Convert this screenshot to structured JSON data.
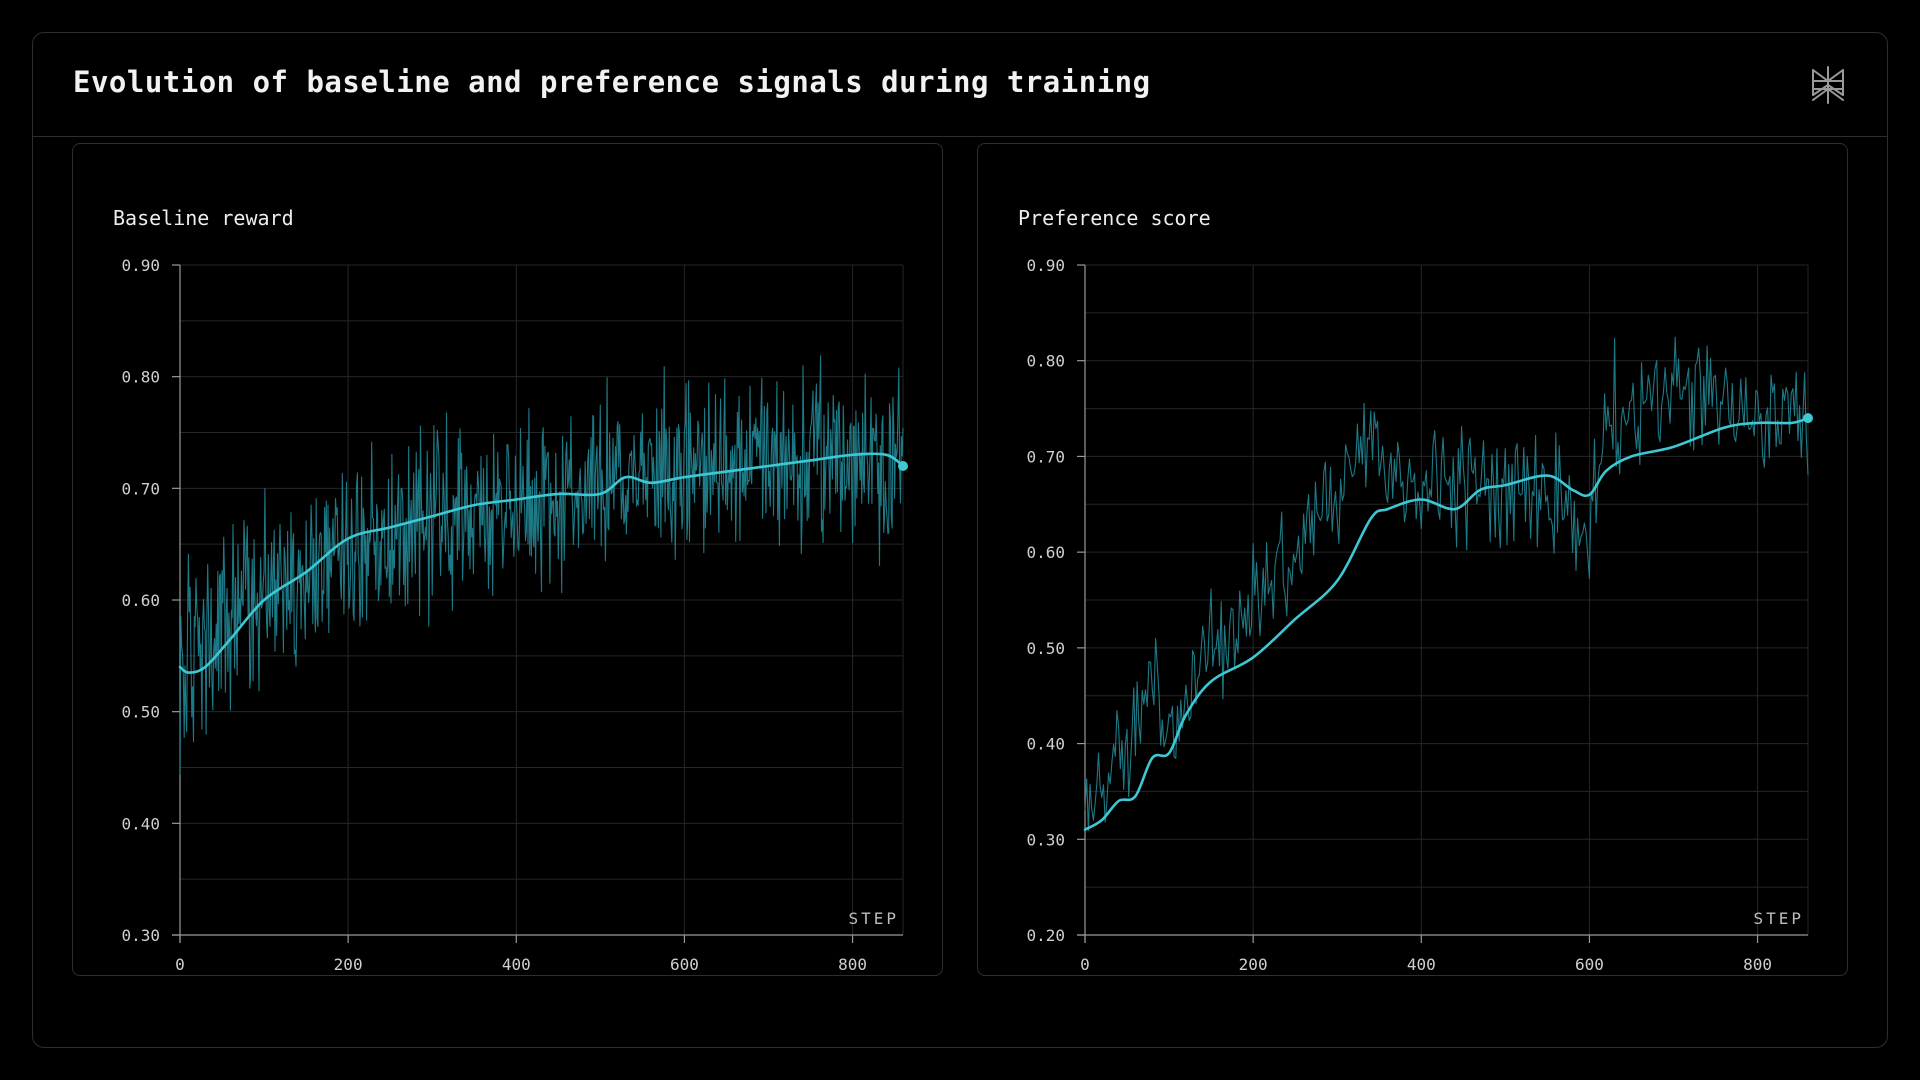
{
  "page": {
    "title": "Evolution of baseline and preference signals during training",
    "logo_icon": "asterisk-snowflake-logo-icon"
  },
  "colors": {
    "background": "#000000",
    "border": "#2e2e2e",
    "grid": "#262626",
    "raw_series": "#1f7f8c",
    "smoothed_series": "#3ec8d4"
  },
  "chart_data": [
    {
      "type": "line",
      "title": "Baseline reward",
      "xlabel": "STEP",
      "ylabel": "",
      "xlim": [
        0,
        860
      ],
      "ylim": [
        0.3,
        0.9
      ],
      "x_ticks": [
        0,
        200,
        400,
        600,
        800
      ],
      "y_ticks": [
        0.3,
        0.4,
        0.5,
        0.6,
        0.7,
        0.8,
        0.9
      ],
      "grid": true,
      "raw": {
        "step_interval": 1,
        "noise_amplitude_approx": 0.07,
        "mean_trend": {
          "x": [
            0,
            40,
            100,
            180,
            300,
            420,
            540,
            700,
            840,
            860
          ],
          "y": [
            0.54,
            0.56,
            0.61,
            0.64,
            0.675,
            0.69,
            0.71,
            0.725,
            0.73,
            0.725
          ]
        }
      },
      "smoothed": {
        "x": [
          0,
          10,
          30,
          60,
          100,
          150,
          200,
          250,
          300,
          350,
          400,
          450,
          500,
          530,
          560,
          600,
          650,
          700,
          750,
          800,
          840,
          860
        ],
        "y": [
          0.54,
          0.535,
          0.54,
          0.565,
          0.6,
          0.625,
          0.655,
          0.665,
          0.675,
          0.685,
          0.69,
          0.695,
          0.695,
          0.71,
          0.705,
          0.71,
          0.715,
          0.72,
          0.725,
          0.73,
          0.73,
          0.72
        ]
      },
      "end_value": 0.72
    },
    {
      "type": "line",
      "title": "Preference score",
      "xlabel": "STEP",
      "ylabel": "",
      "xlim": [
        0,
        860
      ],
      "ylim": [
        0.2,
        0.9
      ],
      "x_ticks": [
        0,
        200,
        400,
        600,
        800
      ],
      "y_ticks": [
        0.2,
        0.3,
        0.4,
        0.5,
        0.6,
        0.7,
        0.8,
        0.9
      ],
      "grid": true,
      "raw": {
        "step_interval": 2,
        "noise_amplitude_approx": 0.055,
        "mean_trend": {
          "x": [
            0,
            40,
            80,
            100,
            150,
            200,
            250,
            300,
            330,
            350,
            400,
            450,
            500,
            550,
            600,
            620,
            650,
            700,
            750,
            800,
            860
          ],
          "y": [
            0.34,
            0.38,
            0.47,
            0.4,
            0.5,
            0.56,
            0.6,
            0.68,
            0.72,
            0.7,
            0.66,
            0.68,
            0.66,
            0.66,
            0.62,
            0.74,
            0.76,
            0.77,
            0.77,
            0.75,
            0.74
          ]
        }
      },
      "smoothed": {
        "x": [
          0,
          20,
          40,
          60,
          80,
          100,
          120,
          150,
          200,
          250,
          300,
          340,
          360,
          400,
          440,
          470,
          500,
          550,
          580,
          600,
          620,
          650,
          700,
          760,
          800,
          840,
          860
        ],
        "y": [
          0.31,
          0.32,
          0.34,
          0.345,
          0.385,
          0.39,
          0.43,
          0.465,
          0.49,
          0.53,
          0.57,
          0.635,
          0.645,
          0.655,
          0.645,
          0.665,
          0.67,
          0.68,
          0.665,
          0.66,
          0.685,
          0.7,
          0.71,
          0.73,
          0.735,
          0.735,
          0.74
        ]
      },
      "end_value": 0.74
    }
  ]
}
